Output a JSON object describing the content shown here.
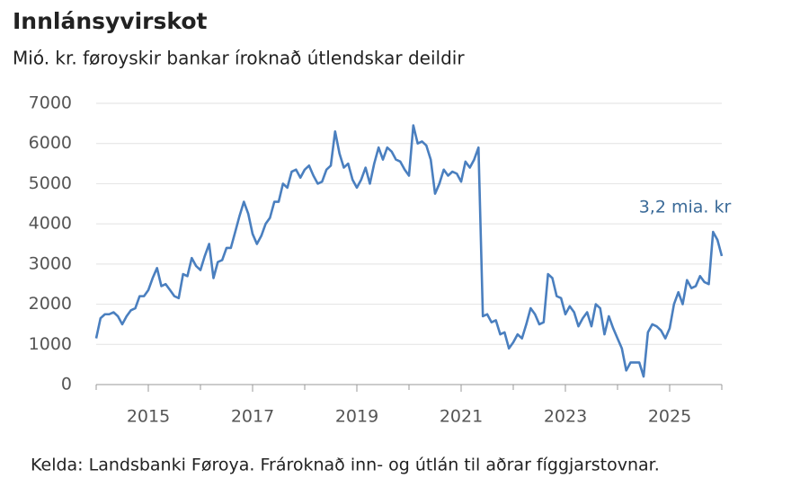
{
  "chart_data": {
    "type": "line",
    "title": "Innlánsyvirskot",
    "subtitle": "Mió. kr. føroyskir bankar íroknað útlendskar deildir",
    "annotation": "3,2 mia. kr",
    "source": "Kelda: Landsbanki Føroya. Frároknað inn- og útlán til aðrar fíggjarstovnar.",
    "x": [
      2014,
      2014.083,
      2014.167,
      2014.25,
      2014.333,
      2014.417,
      2014.5,
      2014.583,
      2014.667,
      2014.75,
      2014.833,
      2014.917,
      2015,
      2015.083,
      2015.167,
      2015.25,
      2015.333,
      2015.417,
      2015.5,
      2015.583,
      2015.667,
      2015.75,
      2015.833,
      2015.917,
      2016,
      2016.083,
      2016.167,
      2016.25,
      2016.333,
      2016.417,
      2016.5,
      2016.583,
      2016.667,
      2016.75,
      2016.833,
      2016.917,
      2017,
      2017.083,
      2017.167,
      2017.25,
      2017.333,
      2017.417,
      2017.5,
      2017.583,
      2017.667,
      2017.75,
      2017.833,
      2017.917,
      2018,
      2018.083,
      2018.167,
      2018.25,
      2018.333,
      2018.417,
      2018.5,
      2018.583,
      2018.667,
      2018.75,
      2018.833,
      2018.917,
      2019,
      2019.083,
      2019.167,
      2019.25,
      2019.333,
      2019.417,
      2019.5,
      2019.583,
      2019.667,
      2019.75,
      2019.833,
      2019.917,
      2020,
      2020.083,
      2020.167,
      2020.25,
      2020.333,
      2020.417,
      2020.5,
      2020.583,
      2020.667,
      2020.75,
      2020.833,
      2020.917,
      2021,
      2021.083,
      2021.167,
      2021.25,
      2021.333,
      2021.417,
      2021.5,
      2021.583,
      2021.667,
      2021.75,
      2021.833,
      2021.917,
      2022,
      2022.083,
      2022.167,
      2022.25,
      2022.333,
      2022.417,
      2022.5,
      2022.583,
      2022.667,
      2022.75,
      2022.833,
      2022.917,
      2023,
      2023.083,
      2023.167,
      2023.25,
      2023.333,
      2023.417,
      2023.5,
      2023.583,
      2023.667,
      2023.75,
      2023.833,
      2023.917,
      2024,
      2024.083,
      2024.167,
      2024.25,
      2024.333,
      2024.417,
      2024.5,
      2024.583,
      2024.667,
      2024.75,
      2024.833,
      2024.917,
      2025,
      2025.083,
      2025.167,
      2025.25,
      2025.333,
      2025.417,
      2025.5,
      2025.583,
      2025.667,
      2025.75,
      2025.833,
      2025.917,
      2026
    ],
    "series": [
      {
        "color": "#4a7fbf",
        "values": [
          1150,
          1650,
          1750,
          1750,
          1800,
          1700,
          1500,
          1700,
          1850,
          1900,
          2200,
          2200,
          2350,
          2650,
          2900,
          2450,
          2500,
          2350,
          2200,
          2150,
          2750,
          2700,
          3150,
          2950,
          2850,
          3200,
          3500,
          2650,
          3050,
          3100,
          3400,
          3400,
          3800,
          4200,
          4550,
          4250,
          3750,
          3500,
          3700,
          4000,
          4150,
          4550,
          4550,
          5000,
          4900,
          5300,
          5350,
          5150,
          5350,
          5450,
          5200,
          5000,
          5050,
          5350,
          5450,
          6300,
          5750,
          5400,
          5500,
          5100,
          4900,
          5100,
          5400,
          5000,
          5500,
          5900,
          5600,
          5900,
          5800,
          5600,
          5550,
          5350,
          5200,
          6450,
          6000,
          6050,
          5950,
          5600,
          4750,
          5000,
          5350,
          5200,
          5300,
          5250,
          5050,
          5550,
          5400,
          5600,
          5900,
          1700,
          1750,
          1550,
          1600,
          1250,
          1300,
          900,
          1050,
          1250,
          1150,
          1500,
          1900,
          1750,
          1500,
          1550,
          2750,
          2650,
          2200,
          2150,
          1750,
          1950,
          1800,
          1450,
          1650,
          1800,
          1450,
          2000,
          1900,
          1250,
          1700,
          1400,
          1150,
          900,
          350,
          550,
          550,
          550,
          200,
          1300,
          1500,
          1450,
          1350,
          1150,
          1400,
          2000,
          2300,
          2000,
          2600,
          2400,
          2450,
          2700,
          2550,
          2500,
          3800,
          3600,
          3200
        ]
      }
    ],
    "xlim": [
      2014,
      2026
    ],
    "xticks": [
      2015,
      2017,
      2019,
      2021,
      2023,
      2025
    ],
    "xminorticks": [
      2014,
      2015,
      2016,
      2017,
      2018,
      2019,
      2020,
      2021,
      2022,
      2023,
      2024,
      2025,
      2026
    ],
    "ylim": [
      0,
      7000
    ],
    "yticks": [
      0,
      1000,
      2000,
      3000,
      4000,
      5000,
      6000,
      7000
    ],
    "grid": true
  }
}
